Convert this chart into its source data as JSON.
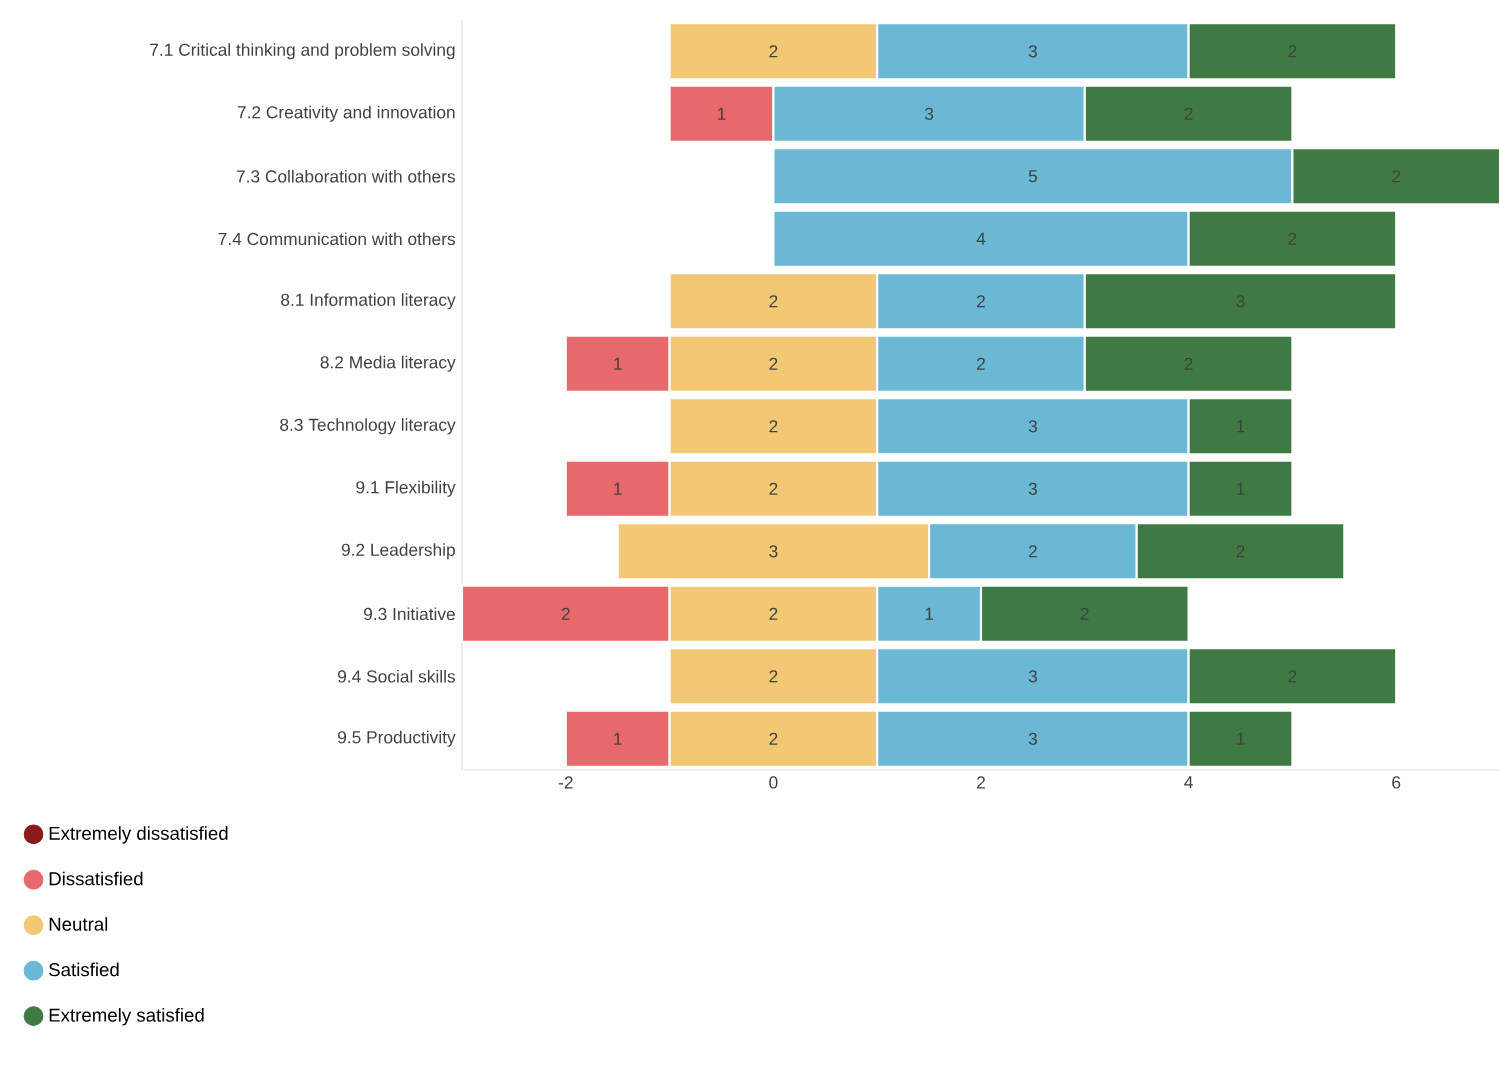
{
  "chart_data": {
    "type": "bar",
    "orientation": "horizontal",
    "categories": [
      "7.1 Critical thinking and problem solving",
      "7.2 Creativity and innovation",
      "7.3 Collaboration with others",
      "7.4 Communication with others",
      "8.1 Information literacy",
      "8.2 Media literacy",
      "8.3 Technology literacy",
      "9.1 Flexibility",
      "9.2 Leadership",
      "9.3 Initiative",
      "9.4 Social skills",
      "9.5 Productivity"
    ],
    "series": [
      {
        "name": "Extremely dissatisfied",
        "color": "#8b1a1a",
        "values": [
          null,
          null,
          null,
          null,
          null,
          null,
          null,
          null,
          null,
          null,
          null,
          null
        ]
      },
      {
        "name": "Dissatisfied",
        "color": "#e8696b",
        "values": [
          null,
          1,
          null,
          null,
          null,
          1,
          null,
          1,
          null,
          2,
          null,
          1
        ],
        "base": [
          null,
          -1,
          null,
          null,
          null,
          -2,
          null,
          -2,
          null,
          -3,
          null,
          -2
        ]
      },
      {
        "name": "Neutral",
        "color": "#f2c875",
        "values": [
          2,
          null,
          null,
          null,
          2,
          2,
          2,
          2,
          3,
          2,
          2,
          2
        ],
        "base": [
          -1,
          null,
          null,
          null,
          -1,
          -1,
          -1,
          -1,
          -1.5,
          -1,
          -1,
          -1
        ]
      },
      {
        "name": "Satisfied",
        "color": "#6bb8d4",
        "values": [
          3,
          3,
          5,
          4,
          2,
          2,
          3,
          3,
          2,
          1,
          3,
          3
        ],
        "base": [
          1,
          0,
          0,
          0,
          1,
          1,
          1,
          1,
          1.5,
          1,
          1,
          1
        ]
      },
      {
        "name": "Extremely satisfied",
        "color": "#3f7a45",
        "values": [
          2,
          2,
          2,
          2,
          3,
          2,
          1,
          1,
          2,
          2,
          2,
          1
        ],
        "base": [
          4,
          3,
          5,
          4,
          3,
          3,
          4,
          4,
          3.5,
          2,
          4,
          4
        ]
      }
    ],
    "xlim": [
      -3,
      7
    ],
    "xticks": [
      -2,
      0,
      2,
      4,
      6
    ],
    "legend": "bottom left",
    "data_labels": true
  }
}
